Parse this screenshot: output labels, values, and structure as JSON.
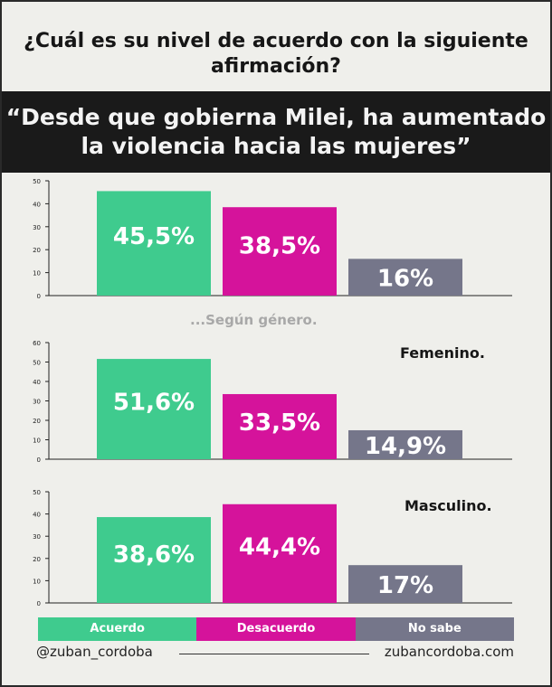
{
  "header": {
    "question": "¿Cuál es su nivel de acuerdo con la siguiente afirmación?",
    "quote": "“Desde que gobierna Milei, ha aumentado la violencia hacia las mujeres”"
  },
  "subtitle": "...Según género.",
  "colors": {
    "acuerdo": "#3fcb8e",
    "desacuerdo": "#d5139b",
    "no_sabe": "#75768a",
    "banner": "#1a1a1a",
    "background": "#efefeb"
  },
  "legend": [
    {
      "label": "Acuerdo",
      "color": "#3fcb8e"
    },
    {
      "label": "Desacuerdo",
      "color": "#d5139b"
    },
    {
      "label": "No sabe",
      "color": "#75768a"
    }
  ],
  "footer": {
    "handle": "@zuban_cordoba",
    "website": "zubancordoba.com"
  },
  "chart_data": [
    {
      "type": "bar",
      "title": "",
      "categories": [
        "Acuerdo",
        "Desacuerdo",
        "No sabe"
      ],
      "values": [
        45.5,
        38.5,
        16
      ],
      "labels": [
        "45,5%",
        "38,5%",
        "16%"
      ],
      "ylim": [
        0,
        50
      ],
      "yticks": [
        0,
        10,
        20,
        30,
        40,
        50
      ]
    },
    {
      "type": "bar",
      "title": "Femenino.",
      "categories": [
        "Acuerdo",
        "Desacuerdo",
        "No sabe"
      ],
      "values": [
        51.6,
        33.5,
        14.9
      ],
      "labels": [
        "51,6%",
        "33,5%",
        "14,9%"
      ],
      "ylim": [
        0,
        60
      ],
      "yticks": [
        0,
        10,
        20,
        30,
        40,
        50,
        60
      ]
    },
    {
      "type": "bar",
      "title": "Masculino.",
      "categories": [
        "Acuerdo",
        "Desacuerdo",
        "No sabe"
      ],
      "values": [
        38.6,
        44.4,
        17
      ],
      "labels": [
        "38,6%",
        "44,4%",
        "17%"
      ],
      "ylim": [
        0,
        50
      ],
      "yticks": [
        0,
        10,
        20,
        30,
        40,
        50
      ]
    }
  ]
}
